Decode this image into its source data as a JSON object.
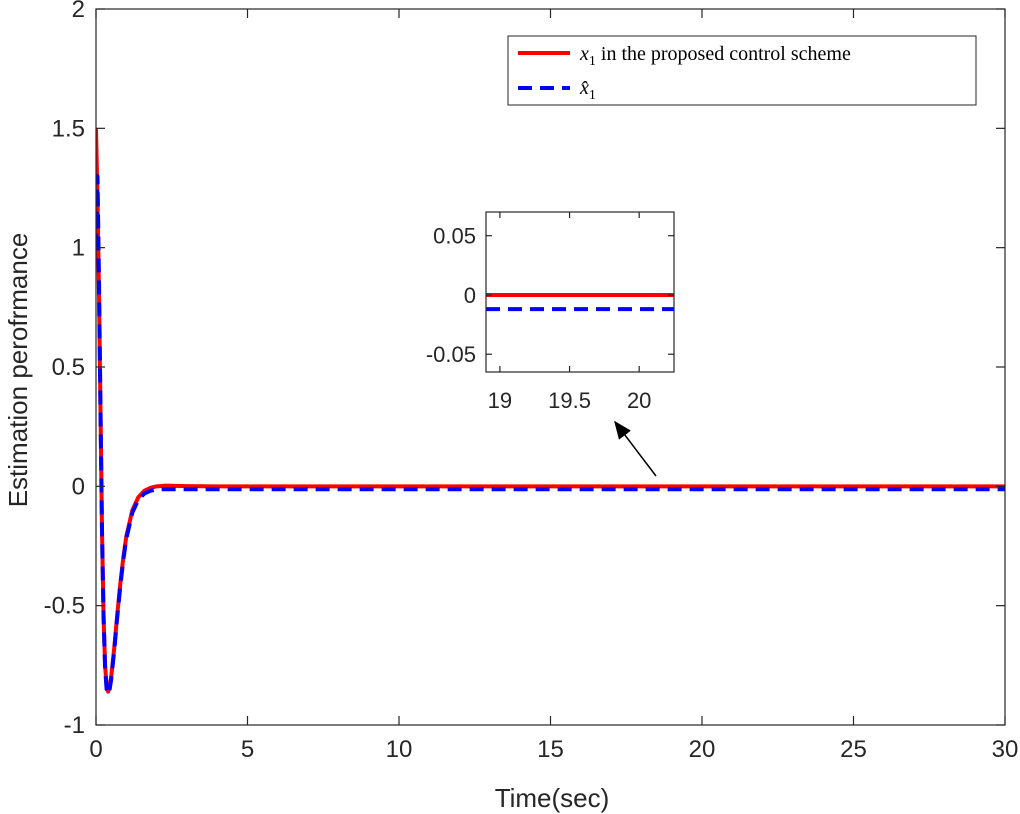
{
  "chart_data": {
    "type": "line",
    "xlabel": "Time(sec)",
    "ylabel": "Estimation perofrmance",
    "xlim": [
      0,
      30
    ],
    "ylim": [
      -1,
      2
    ],
    "xticks": [
      0,
      5,
      10,
      15,
      20,
      25,
      30
    ],
    "yticks": [
      -1,
      -0.5,
      0,
      0.5,
      1,
      1.5,
      2
    ],
    "xtick_labels": [
      "0",
      "5",
      "10",
      "15",
      "20",
      "25",
      "30"
    ],
    "ytick_labels": [
      "-1",
      "-0.5",
      "0",
      "0.5",
      "1",
      "1.5",
      "2"
    ],
    "legend_position": "top-right",
    "series": [
      {
        "name": "x_1 in the proposed control scheme",
        "legend_symbol": "x",
        "legend_subscript": "1",
        "legend_rest": " in the proposed control scheme",
        "color": "#ff0000",
        "style": "solid",
        "x": [
          0,
          0.05,
          0.1,
          0.15,
          0.2,
          0.25,
          0.3,
          0.35,
          0.4,
          0.45,
          0.5,
          0.6,
          0.7,
          0.8,
          0.9,
          1.0,
          1.2,
          1.4,
          1.6,
          1.8,
          2.0,
          2.3,
          2.6,
          3.0,
          4.0,
          5.0,
          10.0,
          15.0,
          20.0,
          25.0,
          30.0
        ],
        "y": [
          1.5,
          1.2,
          0.8,
          0.3,
          -0.2,
          -0.55,
          -0.75,
          -0.84,
          -0.86,
          -0.84,
          -0.8,
          -0.68,
          -0.54,
          -0.41,
          -0.3,
          -0.21,
          -0.1,
          -0.045,
          -0.018,
          -0.006,
          0.0,
          0.003,
          0.002,
          0.001,
          0.0,
          0.0,
          0.0,
          0.0,
          0.0,
          0.0,
          0.0
        ]
      },
      {
        "name": "x̂_1",
        "legend_symbol": "x̂",
        "legend_subscript": "1",
        "legend_rest": "",
        "color": "#0000ff",
        "style": "dashed",
        "x": [
          0,
          0.05,
          0.1,
          0.15,
          0.2,
          0.25,
          0.3,
          0.35,
          0.4,
          0.45,
          0.5,
          0.6,
          0.7,
          0.8,
          0.9,
          1.0,
          1.2,
          1.4,
          1.6,
          1.8,
          2.0,
          2.3,
          2.6,
          3.0,
          4.0,
          5.0,
          10.0,
          15.0,
          20.0,
          25.0,
          30.0
        ],
        "y": [
          1.0,
          1.3,
          0.85,
          0.3,
          -0.2,
          -0.55,
          -0.76,
          -0.85,
          -0.87,
          -0.85,
          -0.81,
          -0.69,
          -0.55,
          -0.42,
          -0.31,
          -0.22,
          -0.11,
          -0.055,
          -0.03,
          -0.018,
          -0.013,
          -0.012,
          -0.012,
          -0.012,
          -0.012,
          -0.012,
          -0.012,
          -0.012,
          -0.012,
          -0.012,
          -0.012
        ]
      }
    ],
    "inset": {
      "xlim": [
        18.9,
        20.25
      ],
      "ylim": [
        -0.065,
        0.07
      ],
      "xticks": [
        19,
        19.5,
        20
      ],
      "yticks": [
        -0.05,
        0,
        0.05
      ],
      "xtick_labels": [
        "19",
        "19.5",
        "20"
      ],
      "ytick_labels": [
        "-0.05",
        "0",
        "0.05"
      ],
      "series_values": [
        0.0,
        -0.012
      ]
    }
  }
}
